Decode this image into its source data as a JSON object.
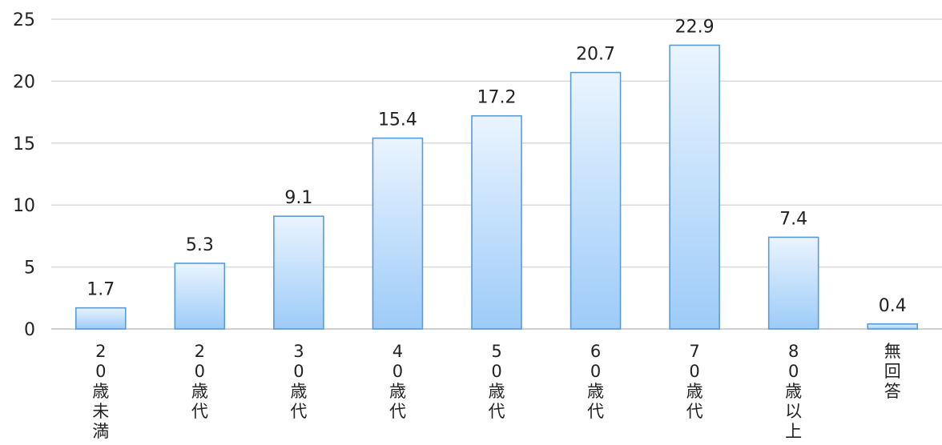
{
  "chart_data": {
    "type": "bar",
    "title": "",
    "xlabel": "",
    "ylabel": "",
    "ylim": [
      0,
      25
    ],
    "yticks": [
      "0",
      "5",
      "10",
      "15",
      "20",
      "25"
    ],
    "grid": true,
    "legend": "none",
    "categories": [
      "20歳未満",
      "20歳代",
      "30歳代",
      "40歳代",
      "50歳代",
      "60歳代",
      "70歳代",
      "80歳以上",
      "無回答"
    ],
    "category_glyphs": [
      [
        "2",
        "0",
        "歳",
        "未",
        "満"
      ],
      [
        "2",
        "0",
        "歳",
        "代"
      ],
      [
        "3",
        "0",
        "歳",
        "代"
      ],
      [
        "4",
        "0",
        "歳",
        "代"
      ],
      [
        "5",
        "0",
        "歳",
        "代"
      ],
      [
        "6",
        "0",
        "歳",
        "代"
      ],
      [
        "7",
        "0",
        "歳",
        "代"
      ],
      [
        "8",
        "0",
        "歳",
        "以",
        "上"
      ],
      [
        "無",
        "回",
        "答"
      ]
    ],
    "values": [
      1.7,
      5.3,
      9.1,
      15.4,
      17.2,
      20.7,
      22.9,
      7.4,
      0.4
    ],
    "value_labels": [
      "1.7",
      "5.3",
      "9.1",
      "15.4",
      "17.2",
      "20.7",
      "22.9",
      "7.4",
      "0.4"
    ],
    "colors": {
      "bar_top": "#eaf4fe",
      "bar_bottom": "#9dcbf8",
      "bar_border": "#5b9bd5",
      "grid": "#d9d9d9",
      "text": "#222222"
    }
  }
}
